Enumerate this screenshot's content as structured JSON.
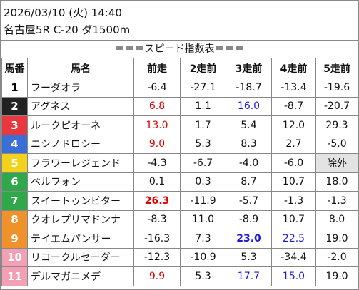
{
  "header": {
    "datetime": "2026/03/10 (火) 14:40",
    "race": "名古屋5R C-20 ダ1500m",
    "title": "＝＝＝スピード指数表＝＝＝"
  },
  "table": {
    "columns": [
      "馬番",
      "馬名",
      "前走",
      "2走前",
      "3走前",
      "4走前",
      "5走前"
    ],
    "rows": [
      {
        "no": "1",
        "name": "フーダオラ",
        "frame_color": "#ffffff",
        "no_color": "#000000",
        "speeds": [
          "-6.4",
          "-27.1",
          "-18.7",
          "-13.4",
          "-19.6"
        ]
      },
      {
        "no": "2",
        "name": "アグネス",
        "frame_color": "#222222",
        "no_color": "#ffffff",
        "speeds": [
          {
            "text": "6.8",
            "color": "#e00000"
          },
          "1.1",
          {
            "text": "16.0",
            "color": "#1a1adc"
          },
          "-8.7",
          "-20.7"
        ]
      },
      {
        "no": "3",
        "name": "ルークピオーネ",
        "frame_color": "#e8383d",
        "no_color": "#ffffff",
        "speeds": [
          {
            "text": "13.0",
            "color": "#e00000"
          },
          "1.7",
          "5.4",
          "12.0",
          "29.3"
        ]
      },
      {
        "no": "4",
        "name": "ニシノドロシー",
        "frame_color": "#3a6fd8",
        "no_color": "#ffffff",
        "speeds": [
          {
            "text": "9.0",
            "color": "#e00000"
          },
          "5.3",
          "8.3",
          "2.7",
          "-5.0"
        ]
      },
      {
        "no": "5",
        "name": "フラワーレジェンド",
        "frame_color": "#f2d21b",
        "no_color": "#ffffff",
        "speeds": [
          "-4.3",
          "-6.7",
          "-4.0",
          "-6.0",
          {
            "text": "除外",
            "background": "#e3e3e3"
          }
        ]
      },
      {
        "no": "6",
        "name": "ベルフォン",
        "frame_color": "#2fa84a",
        "no_color": "#ffffff",
        "speeds": [
          "0.1",
          "0.3",
          "8.7",
          "10.7",
          "18.0"
        ]
      },
      {
        "no": "7",
        "name": "スイートゥンビター",
        "frame_color": "#2fa84a",
        "no_color": "#ffffff",
        "speeds": [
          {
            "text": "26.3",
            "color": "#e00000",
            "bold": true
          },
          "-11.9",
          "-5.7",
          "-1.3",
          "-1.3"
        ]
      },
      {
        "no": "8",
        "name": "クオレプリマドンナ",
        "frame_color": "#f0922c",
        "no_color": "#ffffff",
        "speeds": [
          "-8.3",
          "11.0",
          "-8.9",
          "10.7",
          "8.0"
        ]
      },
      {
        "no": "9",
        "name": "テイエムパンサー",
        "frame_color": "#f0922c",
        "no_color": "#ffffff",
        "speeds": [
          "-16.3",
          "7.3",
          {
            "text": "23.0",
            "color": "#1a1adc",
            "bold": true
          },
          {
            "text": "22.5",
            "color": "#1a1adc"
          },
          "19.0"
        ]
      },
      {
        "no": "10",
        "name": "リコークルセーダー",
        "frame_color": "#f3a0b4",
        "no_color": "#ffffff",
        "speeds": [
          "-12.3",
          "-10.9",
          "5.3",
          "-34.4",
          "-2.0"
        ]
      },
      {
        "no": "11",
        "name": "デルマガニメデ",
        "frame_color": "#f3a0b4",
        "no_color": "#ffffff",
        "speeds": [
          {
            "text": "9.9",
            "color": "#e00000"
          },
          "5.3",
          {
            "text": "17.7",
            "color": "#1a1adc"
          },
          {
            "text": "15.0",
            "color": "#1a1adc"
          },
          "19.0"
        ]
      }
    ]
  }
}
